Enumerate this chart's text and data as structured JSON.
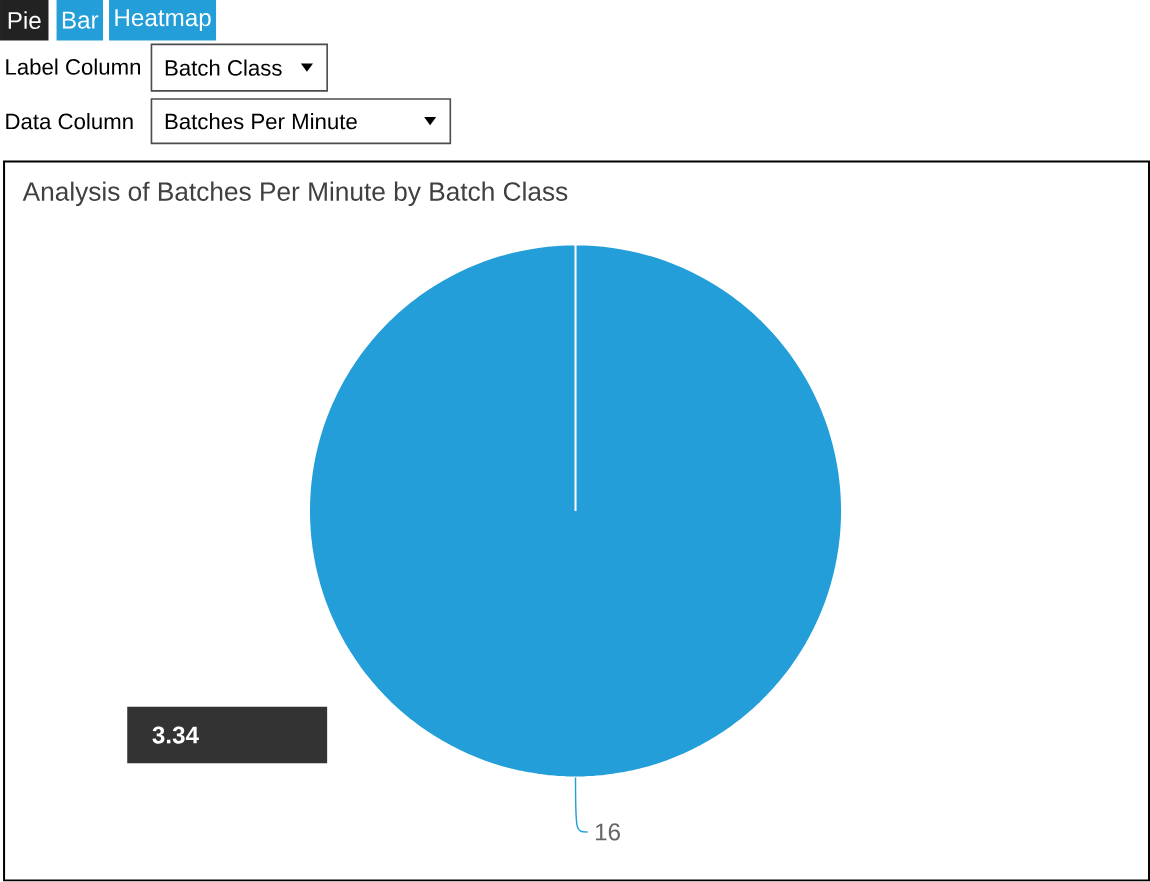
{
  "chart_data": {
    "type": "pie",
    "title": "Analysis of Batches Per Minute by Batch Class",
    "categories": [
      "16"
    ],
    "values": [
      3.34
    ],
    "colors": [
      "#239ed9"
    ],
    "data_labels": true,
    "annotations": [
      "Pie",
      "Bar",
      "Heatmap",
      "Label Column",
      "Batch Class",
      "Data Column",
      "Batches Per Minute"
    ]
  }
}
